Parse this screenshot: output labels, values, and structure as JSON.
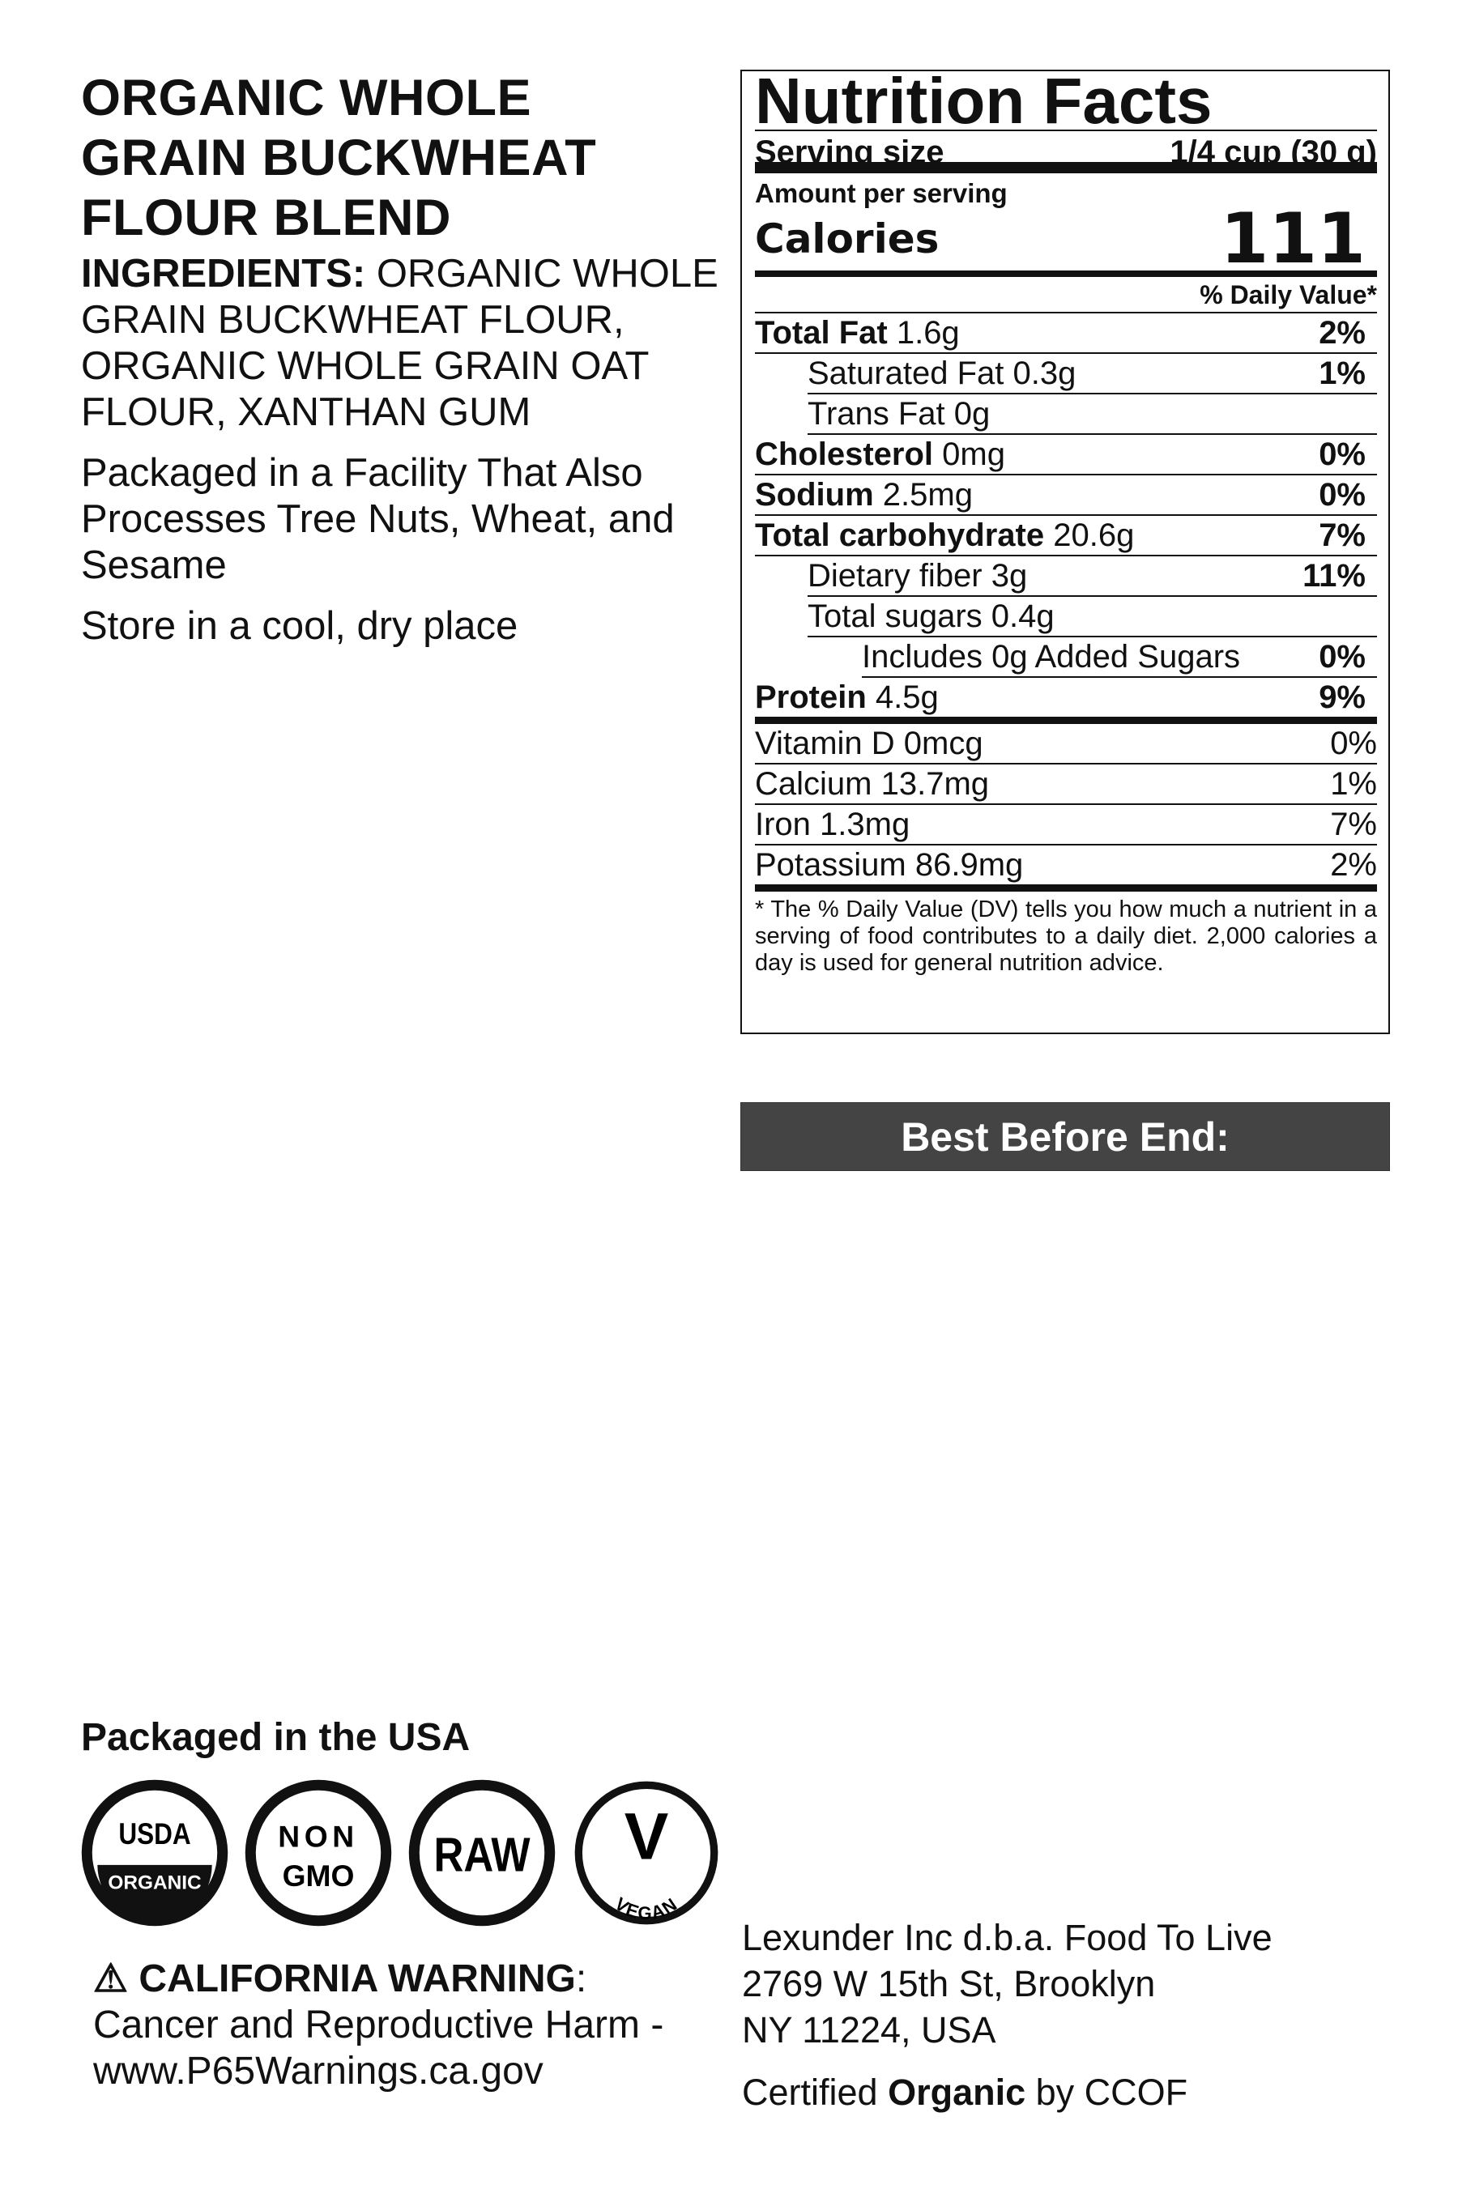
{
  "product": {
    "title": "ORGANIC WHOLE GRAIN BUCKWHEAT FLOUR BLEND",
    "ingredients_label": "INGREDIENTS:",
    "ingredients": "ORGANIC WHOLE GRAIN BUCKWHEAT FLOUR, ORGANIC WHOLE GRAIN OAT FLOUR, XANTHAN GUM",
    "allergen": "Packaged in a Facility That Also Processes Tree Nuts, Wheat, and Sesame",
    "storage": "Store in a cool, dry place"
  },
  "nutrition": {
    "title": "Nutrition Facts",
    "serving_label": "Serving size",
    "serving_value": "1/4 cup (30 g)",
    "amount_per_serving": "Amount per serving",
    "calories_label": "Calories",
    "calories": "111",
    "dv_header": "% Daily Value*",
    "rows": [
      {
        "name": "Total Fat",
        "amount": "1.6g",
        "dv": "2%"
      },
      {
        "name": "Saturated Fat 0.3g",
        "amount": "",
        "dv": "1%"
      },
      {
        "name": "Trans Fat 0g",
        "amount": "",
        "dv": ""
      },
      {
        "name": "Cholesterol",
        "amount": "0mg",
        "dv": "0%"
      },
      {
        "name": "Sodium",
        "amount": "2.5mg",
        "dv": "0%"
      },
      {
        "name": "Total carbohydrate",
        "amount": "20.6g",
        "dv": "7%"
      },
      {
        "name": "Dietary fiber 3g",
        "amount": "",
        "dv": "11%"
      },
      {
        "name": "Total sugars 0.4g",
        "amount": "",
        "dv": ""
      },
      {
        "name": "Includes 0g Added Sugars",
        "amount": "",
        "dv": "0%"
      },
      {
        "name": "Protein",
        "amount": "4.5g",
        "dv": "9%"
      }
    ],
    "vitamins": [
      {
        "name": "Vitamin D 0mcg",
        "dv": "0%"
      },
      {
        "name": "Calcium 13.7mg",
        "dv": "1%"
      },
      {
        "name": "Iron 1.3mg",
        "dv": "7%"
      },
      {
        "name": "Potassium 86.9mg",
        "dv": "2%"
      }
    ],
    "footnote": "* The % Daily Value (DV) tells you how much a nutrient in a serving of food contributes to a daily diet. 2,000 calories a day is used for general nutrition advice."
  },
  "best_before": "Best Before End:",
  "packaged": "Packaged in the USA",
  "logos": {
    "usda_top": "USDA",
    "usda_bottom": "ORGANIC",
    "nongmo_1": "NON",
    "nongmo_2": "GMO",
    "raw": "RAW",
    "vegan_v": "V",
    "vegan_text": "VEGAN"
  },
  "warning": {
    "icon": "warning-triangle-icon",
    "title": "⚠ CALIFORNIA WARNING",
    "colon": ":",
    "line1": "Cancer and Reproductive Harm -",
    "line2": "www.P65Warnings.ca.gov"
  },
  "address": {
    "line1": "Lexunder Inc d.b.a. Food To Live",
    "line2": "2769 W 15th St, Brooklyn",
    "line3": "NY 11224, USA",
    "cert_pre": "Certified ",
    "cert_bold": "Organic",
    "cert_post": " by CCOF"
  }
}
